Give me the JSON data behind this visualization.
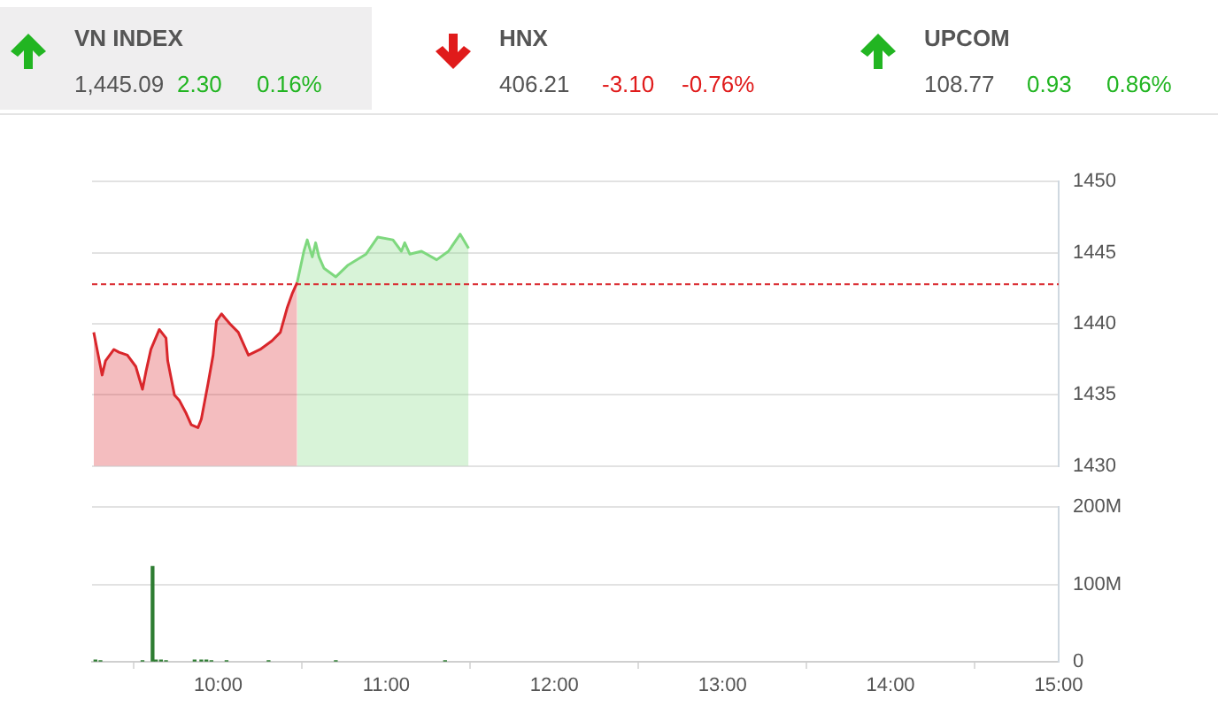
{
  "chart_data": [
    {
      "type": "other",
      "categories": [
        "VN INDEX",
        "HNX",
        "UPCOM"
      ],
      "colors": [
        "#22b522",
        "#e01b1b",
        "#22b522"
      ],
      "series": [
        {
          "values": [
            1445.09,
            406.21,
            108.77
          ],
          "value_labels": [
            "1,445.09",
            "406.21",
            "108.77"
          ]
        },
        {
          "values": [
            2.3,
            -3.1,
            0.93
          ],
          "value_labels": [
            "2.30",
            "-3.10",
            "0.93"
          ]
        },
        {
          "values": [
            0.16,
            -0.76,
            0.86
          ],
          "value_labels": [
            "0.16%",
            "-0.76%",
            "0.86%"
          ]
        }
      ]
    },
    {
      "type": "area",
      "xlim": [
        9.25,
        15
      ],
      "ylim": [
        1430,
        1450
      ],
      "yticks": [
        1430,
        1435,
        1440,
        1445,
        1450
      ],
      "grid": "y",
      "tick_labels": "y",
      "marker": "none",
      "ref_lines": [
        {
          "axis": "y",
          "value": 1442.79,
          "color": "#d9262b",
          "line_style": "dashed"
        }
      ],
      "series": [
        {
          "color": "#d9262b",
          "x": [
            9.26,
            9.28,
            9.31,
            9.33,
            9.38,
            9.41,
            9.46,
            9.51,
            9.55,
            9.57,
            9.6,
            9.65,
            9.69,
            9.7,
            9.74,
            9.77,
            9.81,
            9.84,
            9.88,
            9.9,
            9.94,
            9.97,
            9.99,
            10.02,
            10.07,
            10.12,
            10.18,
            10.25,
            10.32,
            10.37,
            10.41,
            10.44,
            10.47
          ],
          "values": [
            1439.4,
            1438.2,
            1436.4,
            1437.4,
            1438.2,
            1438.0,
            1437.8,
            1437.0,
            1435.4,
            1436.6,
            1438.2,
            1439.6,
            1439.0,
            1437.4,
            1435.0,
            1434.6,
            1433.7,
            1432.9,
            1432.7,
            1433.3,
            1435.8,
            1437.8,
            1440.2,
            1440.7,
            1440.0,
            1439.4,
            1437.8,
            1438.2,
            1438.8,
            1439.4,
            1441.1,
            1442.1,
            1442.9
          ]
        },
        {
          "color": "#7ed87e",
          "x": [
            10.47,
            10.51,
            10.53,
            10.56,
            10.58,
            10.6,
            10.63,
            10.7,
            10.77,
            10.88,
            10.95,
            11.04,
            11.09,
            11.11,
            11.14,
            11.21,
            11.3,
            11.37,
            11.44,
            11.49
          ],
          "values": [
            1442.9,
            1445.1,
            1445.9,
            1444.7,
            1445.7,
            1444.7,
            1443.9,
            1443.3,
            1444.1,
            1444.9,
            1446.1,
            1445.9,
            1445.1,
            1445.7,
            1444.9,
            1445.1,
            1444.5,
            1445.1,
            1446.3,
            1445.3
          ]
        }
      ]
    },
    {
      "type": "bar",
      "xlim": [
        9.25,
        15
      ],
      "xticks": [
        {
          "value": 10,
          "label": "10:00"
        },
        {
          "value": 11,
          "label": "11:00"
        },
        {
          "value": 12,
          "label": "12:00"
        },
        {
          "value": 13,
          "label": "13:00"
        },
        {
          "value": 14,
          "label": "14:00"
        },
        {
          "value": 15,
          "label": "15:00"
        }
      ],
      "ylim": [
        0,
        200
      ],
      "yticks": [
        0,
        {
          "value": 100,
          "label": "100M"
        },
        {
          "value": 200,
          "label": "200M"
        }
      ],
      "grid": "y",
      "series": [
        {
          "color": "#2e7d32",
          "x": [
            9.27,
            9.3,
            9.55,
            9.61,
            9.63,
            9.66,
            9.69,
            9.86,
            9.9,
            9.93,
            9.96,
            10.05,
            10.3,
            10.7,
            11.35
          ],
          "values": [
            2,
            1,
            1,
            123,
            2,
            2,
            1,
            2,
            2,
            2,
            1,
            1,
            1,
            1,
            1
          ]
        }
      ]
    }
  ]
}
